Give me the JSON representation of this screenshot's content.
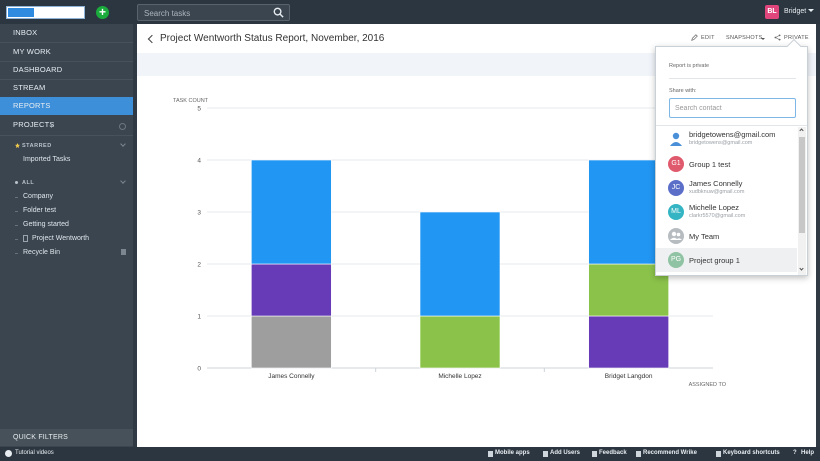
{
  "header": {
    "search_placeholder": "Search tasks",
    "user_initials": "BL",
    "user_name": "Bridget"
  },
  "sidebar": {
    "nav": [
      "INBOX",
      "MY WORK",
      "DASHBOARD",
      "STREAM",
      "REPORTS"
    ],
    "active_index": 4,
    "projects_label": "PROJECTS",
    "starred_label": "STARRED",
    "starred_items": [
      "Imported Tasks"
    ],
    "all_label": "ALL",
    "all_items": [
      "Company",
      "Folder test",
      "Getting started",
      "Project Wentworth",
      "Recycle Bin"
    ],
    "quick_filters": "QUICK FILTERS"
  },
  "report": {
    "title": "Project Wentworth Status Report, November, 2016",
    "edit": "EDIT",
    "snapshots": "SNAPSHOTS",
    "private": "PRIVATE"
  },
  "share_popup": {
    "status": "Report is private",
    "share_with": "Share with:",
    "search_placeholder": "Search contact",
    "contacts": [
      {
        "name": "bridgetowens@gmail.com",
        "email": "bridgetowens@gmail.com",
        "initials": "",
        "color": "#4a90d9",
        "type": "person-icon"
      },
      {
        "name": "Group 1 test",
        "email": "",
        "initials": "G1",
        "color": "#e05a6d",
        "type": "initials"
      },
      {
        "name": "James Connelly",
        "email": "xudbknuw@gmail.com",
        "initials": "JC",
        "color": "#5b6fc9",
        "type": "initials"
      },
      {
        "name": "Michelle Lopez",
        "email": "clarkr5570@gmail.com",
        "initials": "ML",
        "color": "#35b5c4",
        "type": "initials"
      },
      {
        "name": "My Team",
        "email": "",
        "initials": "",
        "color": "#b7bcc1",
        "type": "team-icon"
      },
      {
        "name": "Project group 1",
        "email": "",
        "initials": "PG",
        "color": "#8fc3a3",
        "type": "initials"
      }
    ]
  },
  "chart_data": {
    "type": "bar",
    "stacked": true,
    "ylabel": "TASK COUNT",
    "xlabel": "ASSIGNED TO",
    "ylim": [
      0,
      5
    ],
    "yticks": [
      "0",
      "1",
      "2",
      "3",
      "4",
      "5"
    ],
    "categories": [
      "James Connelly",
      "Michelle Lopez",
      "Bridget Langdon"
    ],
    "series": [
      {
        "color": "#9e9e9e",
        "values": [
          1,
          0,
          0
        ]
      },
      {
        "color": "#673ab7",
        "values": [
          1,
          0,
          1
        ]
      },
      {
        "color": "#8bc34a",
        "values": [
          0,
          1,
          1
        ]
      },
      {
        "color": "#2196f3",
        "values": [
          2,
          2,
          2
        ]
      }
    ]
  },
  "footer": {
    "tutorial": "Tutorial videos",
    "links": [
      "Mobile apps",
      "Add Users",
      "Feedback",
      "Recommend Wrike",
      "Keyboard shortcuts",
      "Help"
    ]
  }
}
